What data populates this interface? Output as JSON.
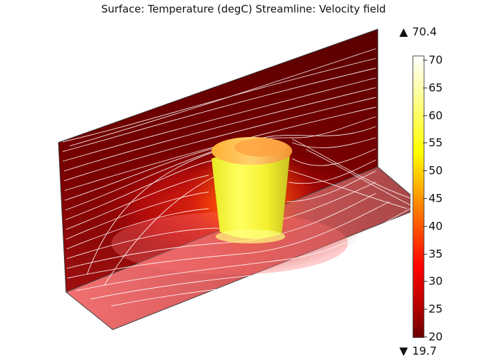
{
  "plot": {
    "title": "Surface: Temperature (degC)  Streamline: Velocity field"
  },
  "colorbar": {
    "max_value": "70.4",
    "min_value": "19.7",
    "ticks": [
      "20",
      "25",
      "30",
      "35",
      "40",
      "45",
      "50",
      "55",
      "60",
      "65",
      "70"
    ],
    "colors": {
      "cold": "#6b0000",
      "mid": "#ff0000",
      "warm": "#ffa500",
      "hot": "#ffff00",
      "hottest": "#ffffff"
    }
  }
}
